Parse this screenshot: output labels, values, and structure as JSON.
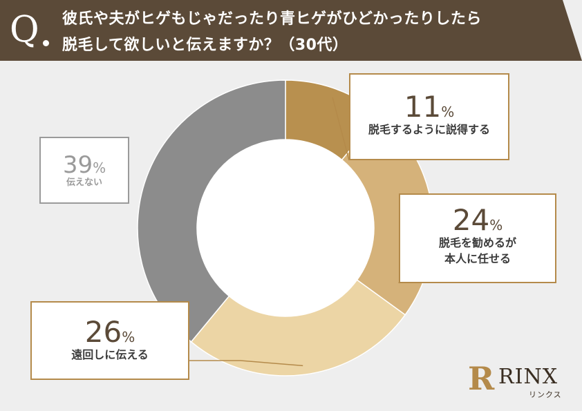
{
  "header": {
    "q_letter": "Q",
    "title_line1": "彼氏や夫がヒゲもじゃだったり青ヒゲがひどかったりしたら",
    "title_line2": "脱毛して欲しいと伝えますか？（30代）"
  },
  "colors": {
    "header_bg": "#5b4a38",
    "accent": "#b48a4a",
    "slice_11": "#b8904f",
    "slice_24": "#d5b27a",
    "slice_26": "#ecd5a5",
    "slice_39": "#8c8c8c"
  },
  "chart_data": {
    "type": "pie",
    "donut": true,
    "title": "",
    "unit": "%",
    "slices": [
      {
        "value": 11,
        "label": "脱毛するように説得する",
        "color": "#b8904f"
      },
      {
        "value": 24,
        "label": "脱毛を勧めるが本人に任せる",
        "color": "#d5b27a"
      },
      {
        "value": 26,
        "label": "遠回しに伝える",
        "color": "#ecd5a5"
      },
      {
        "value": 39,
        "label": "伝えない",
        "color": "#8c8c8c"
      }
    ]
  },
  "callouts": {
    "s11": {
      "pct": "11",
      "unit": "%",
      "label": "脱毛するように説得する"
    },
    "s24": {
      "pct": "24",
      "unit": "%",
      "label1": "脱毛を勧めるが",
      "label2": "本人に任せる"
    },
    "s26": {
      "pct": "26",
      "unit": "%",
      "label": "遠回しに伝える"
    },
    "s39": {
      "pct": "39",
      "unit": "%",
      "label": "伝えない"
    }
  },
  "logo": {
    "icon": "rinx-logo-mark",
    "mark": "R",
    "word": "RINX",
    "kana": "リンクス"
  }
}
